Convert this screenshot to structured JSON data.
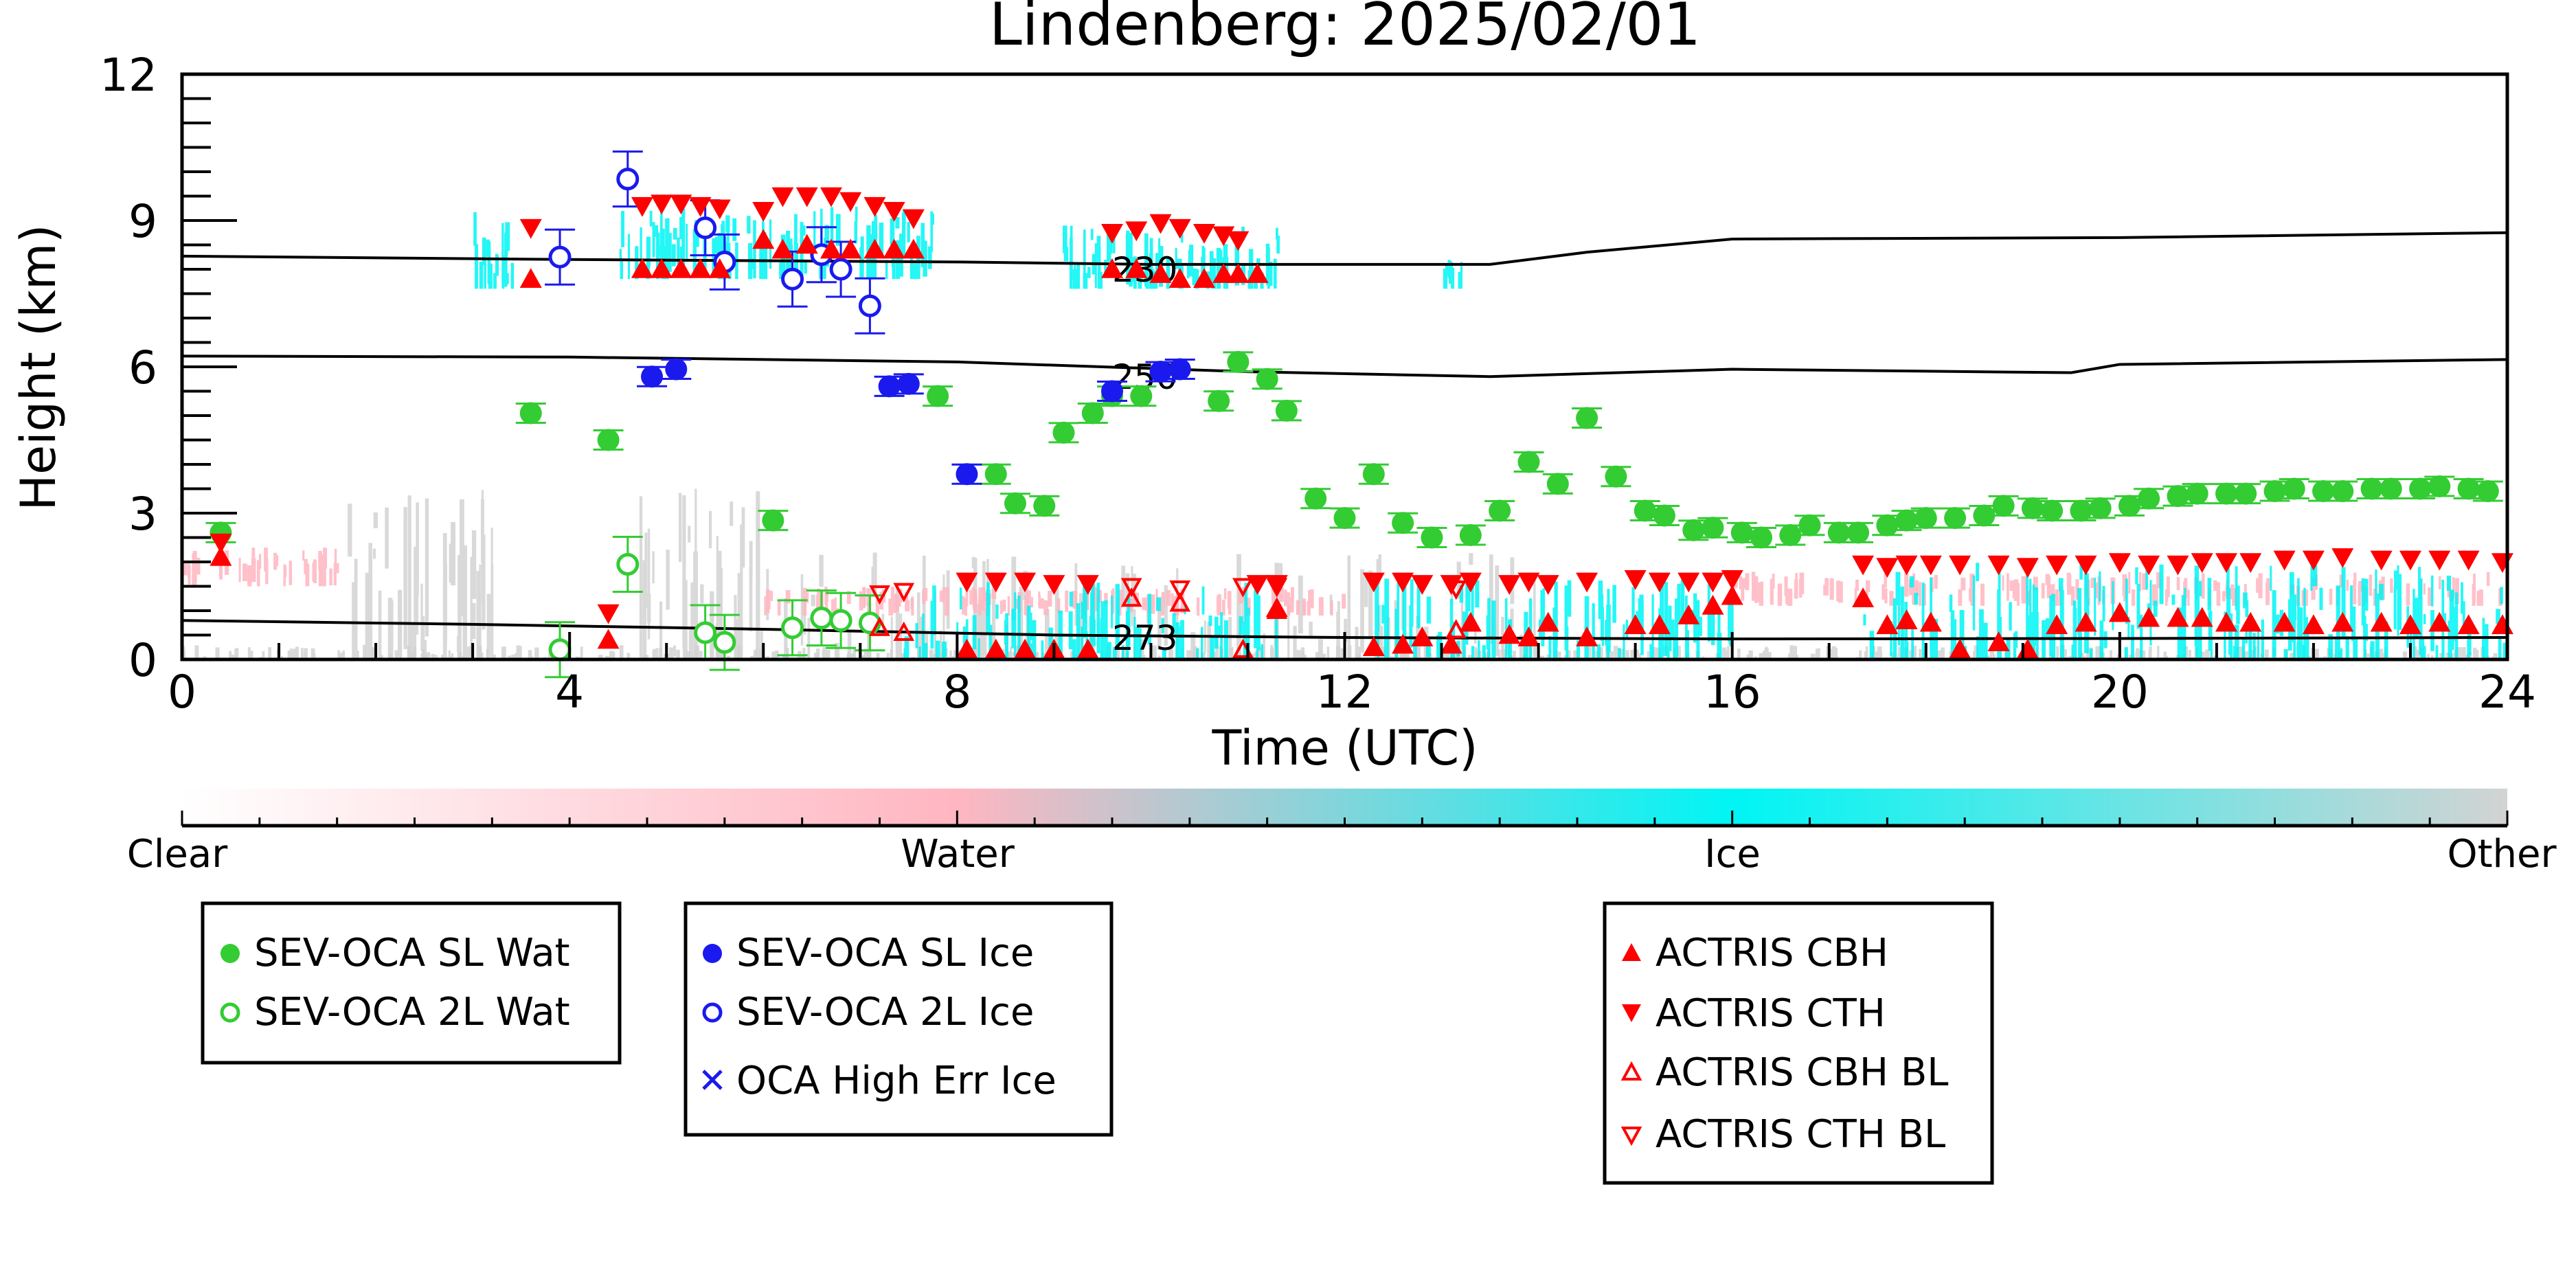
{
  "chart_data": {
    "type": "scatter",
    "title": "Lindenberg: 2025/02/01",
    "xlabel": "Time (UTC)",
    "ylabel": "Height (km)",
    "xlim": [
      0,
      24
    ],
    "ylim": [
      0,
      12
    ],
    "x_ticks": [
      0,
      4,
      8,
      12,
      16,
      20,
      24
    ],
    "y_ticks": [
      0,
      3,
      6,
      9,
      12
    ],
    "grid": false,
    "colorbar": {
      "labels": [
        "Clear",
        "Water",
        "Ice",
        "Other"
      ],
      "colors": [
        "#ffffff",
        "#ffb6c1",
        "#00f5f5",
        "#d3d3d3"
      ]
    },
    "isotherms": [
      {
        "label": "230",
        "x": [
          0,
          4,
          8,
          10,
          13.5,
          14.5,
          16,
          20,
          24
        ],
        "y": [
          8.27,
          8.2,
          8.15,
          8.1,
          8.1,
          8.35,
          8.62,
          8.65,
          8.75
        ],
        "label_x": 9.6,
        "label_y": 8.0
      },
      {
        "label": "250",
        "x": [
          0,
          4,
          8,
          11,
          13.5,
          16,
          19.5,
          20,
          24
        ],
        "y": [
          6.22,
          6.2,
          6.1,
          5.9,
          5.8,
          5.95,
          5.88,
          6.05,
          6.15
        ],
        "label_x": 9.6,
        "label_y": 5.8
      },
      {
        "label": "273",
        "x": [
          0,
          3,
          6,
          9,
          12,
          16,
          20,
          24
        ],
        "y": [
          0.8,
          0.72,
          0.62,
          0.5,
          0.45,
          0.42,
          0.43,
          0.45
        ],
        "label_x": 9.6,
        "label_y": 0.45
      }
    ],
    "series": [
      {
        "name": "SEV-OCA SL Wat",
        "color": "#33cc33",
        "marker": "circle-filled",
        "x": [
          0.4,
          3.6,
          4.4,
          6.1,
          7.8,
          8.4,
          8.6,
          8.9,
          9.1,
          9.4,
          9.6,
          9.9,
          10.7,
          10.9,
          11.2,
          11.4,
          11.7,
          12.0,
          12.3,
          12.6,
          12.9,
          13.3,
          13.6,
          13.9,
          14.2,
          14.5,
          14.8,
          15.1,
          15.3,
          15.6,
          15.8,
          16.1,
          16.3,
          16.6,
          16.8,
          17.1,
          17.3,
          17.6,
          17.8,
          18.0,
          18.3,
          18.6,
          18.8,
          19.1,
          19.3,
          19.6,
          19.8,
          20.1,
          20.3,
          20.6,
          20.8,
          21.1,
          21.3,
          21.6,
          21.8,
          22.1,
          22.3,
          22.6,
          22.8,
          23.1,
          23.3,
          23.6,
          23.8
        ],
        "y": [
          2.6,
          5.05,
          4.5,
          2.85,
          5.4,
          3.8,
          3.2,
          3.15,
          4.65,
          5.05,
          5.4,
          5.4,
          5.3,
          6.1,
          5.75,
          5.1,
          3.3,
          2.9,
          3.8,
          2.8,
          2.5,
          2.55,
          3.05,
          4.05,
          3.6,
          4.95,
          3.75,
          3.05,
          2.95,
          2.65,
          2.7,
          2.6,
          2.5,
          2.55,
          2.75,
          2.6,
          2.6,
          2.75,
          2.85,
          2.9,
          2.9,
          2.95,
          3.15,
          3.1,
          3.05,
          3.05,
          3.1,
          3.15,
          3.3,
          3.35,
          3.4,
          3.4,
          3.4,
          3.45,
          3.5,
          3.45,
          3.45,
          3.5,
          3.5,
          3.5,
          3.55,
          3.5,
          3.45
        ]
      },
      {
        "name": "SEV-OCA 2L Wat",
        "color": "#33cc33",
        "marker": "circle-open",
        "x": [
          3.9,
          4.6,
          5.4,
          5.6,
          6.3,
          6.6,
          6.8,
          7.1
        ],
        "y": [
          0.2,
          1.95,
          0.55,
          0.35,
          0.65,
          0.85,
          0.8,
          0.75
        ]
      },
      {
        "name": "SEV-OCA SL Ice",
        "color": "#1a1aee",
        "marker": "circle-filled",
        "x": [
          4.85,
          5.1,
          7.3,
          7.5,
          8.1,
          9.6,
          10.1,
          10.3
        ],
        "y": [
          5.8,
          5.95,
          5.6,
          5.65,
          3.8,
          5.5,
          5.9,
          5.95
        ]
      },
      {
        "name": "SEV-OCA 2L Ice",
        "color": "#1a1aee",
        "marker": "circle-open",
        "x": [
          3.9,
          4.6,
          5.4,
          5.6,
          6.3,
          6.6,
          6.8,
          7.1
        ],
        "y": [
          8.25,
          9.85,
          8.85,
          8.15,
          7.8,
          8.3,
          8.0,
          7.25
        ]
      },
      {
        "name": "OCA High Err Ice",
        "color": "#1a1aee",
        "marker": "x",
        "x": [],
        "y": []
      },
      {
        "name": "ACTRIS CBH",
        "color": "#ff0000",
        "marker": "triangle-up-filled",
        "x": [
          0.4,
          3.6,
          4.4,
          4.75,
          4.95,
          5.15,
          5.35,
          5.55,
          6.0,
          6.2,
          6.45,
          6.7,
          6.9,
          7.15,
          7.35,
          7.55,
          8.1,
          8.4,
          8.7,
          9.0,
          9.35,
          9.6,
          9.85,
          10.1,
          10.3,
          10.55,
          10.75,
          10.9,
          11.1,
          11.3,
          12.3,
          12.6,
          12.8,
          13.1,
          13.3,
          13.7,
          13.9,
          14.1,
          14.5,
          15.0,
          15.25,
          15.55,
          15.8,
          16.0,
          17.35,
          17.6,
          17.8,
          18.05,
          18.35,
          18.75,
          19.05,
          19.35,
          19.65,
          20.0,
          20.3,
          20.6,
          20.85,
          21.1,
          21.35,
          21.7,
          22.0,
          22.3,
          22.7,
          23.0,
          23.3,
          23.6,
          23.95
        ],
        "y": [
          2.1,
          7.8,
          0.4,
          8.0,
          8.0,
          8.0,
          8.0,
          8.0,
          8.6,
          8.4,
          8.5,
          8.4,
          8.4,
          8.4,
          8.4,
          8.4,
          0.2,
          0.2,
          0.2,
          0.2,
          0.2,
          8.0,
          8.0,
          7.9,
          7.8,
          7.8,
          7.9,
          7.9,
          7.9,
          1.05,
          0.25,
          0.3,
          0.45,
          0.3,
          0.75,
          0.5,
          0.45,
          0.75,
          0.45,
          0.7,
          0.7,
          0.9,
          1.1,
          1.3,
          1.25,
          0.7,
          0.8,
          0.75,
          0.2,
          0.35,
          0.2,
          0.7,
          0.75,
          0.95,
          0.85,
          0.85,
          0.85,
          0.75,
          0.75,
          0.75,
          0.7,
          0.75,
          0.75,
          0.7,
          0.75,
          0.7,
          0.7
        ]
      },
      {
        "name": "ACTRIS CTH",
        "color": "#ff0000",
        "marker": "triangle-down-filled",
        "x": [
          0.4,
          3.6,
          4.4,
          4.75,
          4.95,
          5.15,
          5.35,
          5.55,
          6.0,
          6.2,
          6.45,
          6.7,
          6.9,
          7.15,
          7.35,
          7.55,
          8.1,
          8.4,
          8.7,
          9.0,
          9.35,
          9.6,
          9.85,
          10.1,
          10.3,
          10.55,
          10.75,
          10.9,
          11.1,
          11.3,
          12.3,
          12.6,
          12.8,
          13.1,
          13.3,
          13.7,
          13.9,
          14.1,
          14.5,
          15.0,
          15.25,
          15.55,
          15.8,
          16.0,
          17.35,
          17.6,
          17.8,
          18.05,
          18.35,
          18.75,
          19.05,
          19.35,
          19.65,
          20.0,
          20.3,
          20.6,
          20.85,
          21.1,
          21.35,
          21.7,
          22.0,
          22.3,
          22.7,
          23.0,
          23.3,
          23.6,
          23.95
        ],
        "y": [
          2.4,
          8.85,
          0.95,
          9.3,
          9.35,
          9.35,
          9.3,
          9.25,
          9.2,
          9.5,
          9.5,
          9.5,
          9.4,
          9.3,
          9.2,
          9.05,
          1.6,
          1.6,
          1.6,
          1.55,
          1.55,
          8.75,
          8.8,
          8.95,
          8.85,
          8.75,
          8.7,
          8.6,
          1.55,
          1.55,
          1.6,
          1.6,
          1.55,
          1.55,
          1.6,
          1.55,
          1.6,
          1.55,
          1.6,
          1.65,
          1.6,
          1.6,
          1.6,
          1.65,
          1.95,
          1.9,
          1.95,
          1.95,
          1.95,
          1.95,
          1.9,
          1.95,
          1.95,
          2.0,
          1.95,
          1.95,
          2.0,
          2.0,
          2.0,
          2.05,
          2.05,
          2.1,
          2.05,
          2.05,
          2.05,
          2.05,
          2.0
        ]
      },
      {
        "name": "ACTRIS CBH BL",
        "color": "#ff0000",
        "marker": "triangle-up-open",
        "x": [
          7.2,
          7.45,
          9.8,
          10.3,
          10.95,
          11.3,
          13.15
        ],
        "y": [
          0.65,
          0.55,
          1.25,
          1.15,
          0.2,
          1.0,
          0.6
        ]
      },
      {
        "name": "ACTRIS CTH BL",
        "color": "#ff0000",
        "marker": "triangle-down-open",
        "x": [
          7.2,
          7.45,
          9.8,
          10.3,
          10.95,
          11.3,
          13.15
        ],
        "y": [
          1.35,
          1.4,
          1.5,
          1.45,
          1.5,
          1.5,
          1.45
        ]
      }
    ],
    "legends": [
      {
        "entries": [
          "SEV-OCA SL Wat",
          "SEV-OCA 2L Wat"
        ]
      },
      {
        "entries": [
          "SEV-OCA SL Ice",
          "SEV-OCA 2L Ice",
          "OCA High Err Ice"
        ]
      },
      {
        "entries": [
          "ACTRIS CBH",
          "ACTRIS CTH",
          "ACTRIS CBH BL",
          "ACTRIS CTH BL"
        ]
      }
    ]
  }
}
